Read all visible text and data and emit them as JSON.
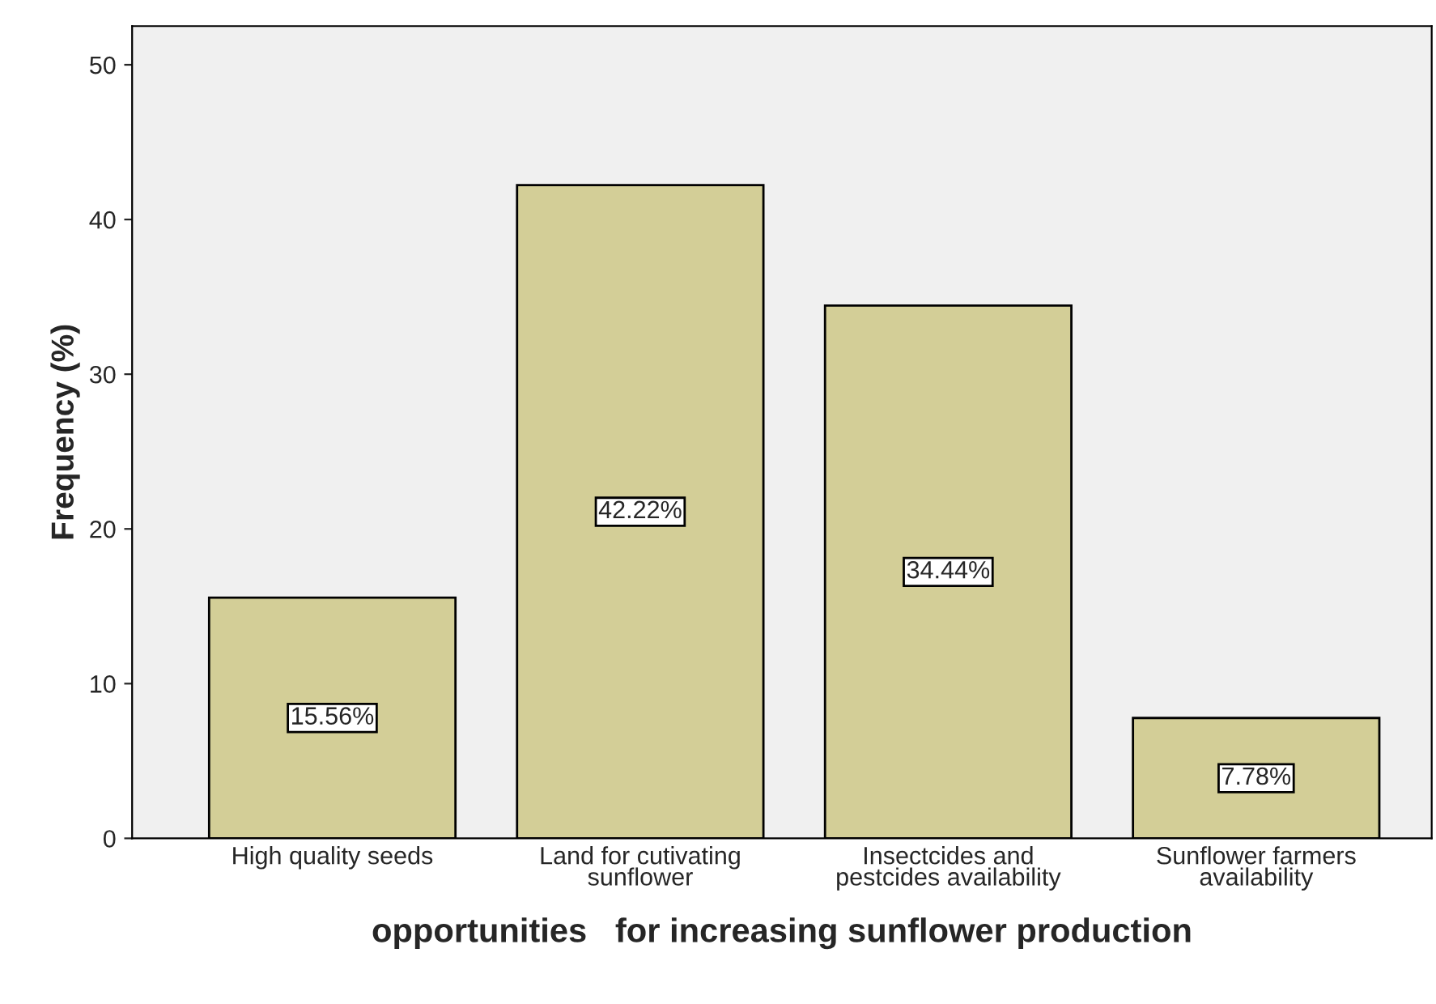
{
  "chart_data": {
    "type": "bar",
    "categories": [
      "High quality seeds",
      "Land for cutivating\nsunflower",
      "Insectcides and\npestcides availability",
      "Sunflower farmers\navailability"
    ],
    "values": [
      15.56,
      42.22,
      34.44,
      7.78
    ],
    "value_labels": [
      "15.56%",
      "42.22%",
      "34.44%",
      "7.78%"
    ],
    "color": "#d3ce97",
    "xlabel": "opportunities   for increasing sunflower production",
    "ylabel": "Frequency (%)",
    "ylim": [
      0,
      52.5
    ],
    "yticks": [
      0,
      10,
      20,
      30,
      40,
      50
    ],
    "grid": false
  }
}
